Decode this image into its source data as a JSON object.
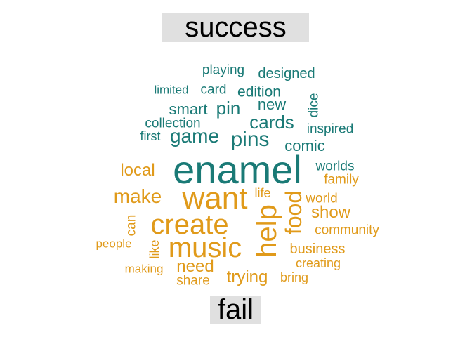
{
  "chart_data": {
    "type": "comparison_wordcloud",
    "groups": [
      {
        "name": "success",
        "color": "#1a7a76"
      },
      {
        "name": "fail",
        "color": "#e09a1a"
      }
    ],
    "words": [
      {
        "text": "enamel",
        "group": "success",
        "size": 9
      },
      {
        "text": "game",
        "group": "success",
        "size": 4
      },
      {
        "text": "pins",
        "group": "success",
        "size": 4
      },
      {
        "text": "cards",
        "group": "success",
        "size": 3
      },
      {
        "text": "pin",
        "group": "success",
        "size": 3
      },
      {
        "text": "comic",
        "group": "success",
        "size": 3
      },
      {
        "text": "new",
        "group": "success",
        "size": 3
      },
      {
        "text": "smart",
        "group": "success",
        "size": 3
      },
      {
        "text": "edition",
        "group": "success",
        "size": 2
      },
      {
        "text": "card",
        "group": "success",
        "size": 2
      },
      {
        "text": "designed",
        "group": "success",
        "size": 2
      },
      {
        "text": "playing",
        "group": "success",
        "size": 2
      },
      {
        "text": "limited",
        "group": "success",
        "size": 2
      },
      {
        "text": "collection",
        "group": "success",
        "size": 2
      },
      {
        "text": "first",
        "group": "success",
        "size": 2
      },
      {
        "text": "inspired",
        "group": "success",
        "size": 2
      },
      {
        "text": "dice",
        "group": "success",
        "size": 2
      },
      {
        "text": "worlds",
        "group": "success",
        "size": 2
      },
      {
        "text": "want",
        "group": "fail",
        "size": 7
      },
      {
        "text": "help",
        "group": "fail",
        "size": 6
      },
      {
        "text": "create",
        "group": "fail",
        "size": 6
      },
      {
        "text": "music",
        "group": "fail",
        "size": 6
      },
      {
        "text": "food",
        "group": "fail",
        "size": 5
      },
      {
        "text": "make",
        "group": "fail",
        "size": 4
      },
      {
        "text": "local",
        "group": "fail",
        "size": 3
      },
      {
        "text": "show",
        "group": "fail",
        "size": 3
      },
      {
        "text": "need",
        "group": "fail",
        "size": 3
      },
      {
        "text": "trying",
        "group": "fail",
        "size": 3
      },
      {
        "text": "world",
        "group": "fail",
        "size": 2
      },
      {
        "text": "family",
        "group": "fail",
        "size": 2
      },
      {
        "text": "life",
        "group": "fail",
        "size": 2
      },
      {
        "text": "business",
        "group": "fail",
        "size": 2
      },
      {
        "text": "community",
        "group": "fail",
        "size": 2
      },
      {
        "text": "creating",
        "group": "fail",
        "size": 2
      },
      {
        "text": "bring",
        "group": "fail",
        "size": 2
      },
      {
        "text": "share",
        "group": "fail",
        "size": 2
      },
      {
        "text": "making",
        "group": "fail",
        "size": 2
      },
      {
        "text": "people",
        "group": "fail",
        "size": 2
      },
      {
        "text": "can",
        "group": "fail",
        "size": 2
      },
      {
        "text": "like",
        "group": "fail",
        "size": 2
      }
    ]
  }
}
